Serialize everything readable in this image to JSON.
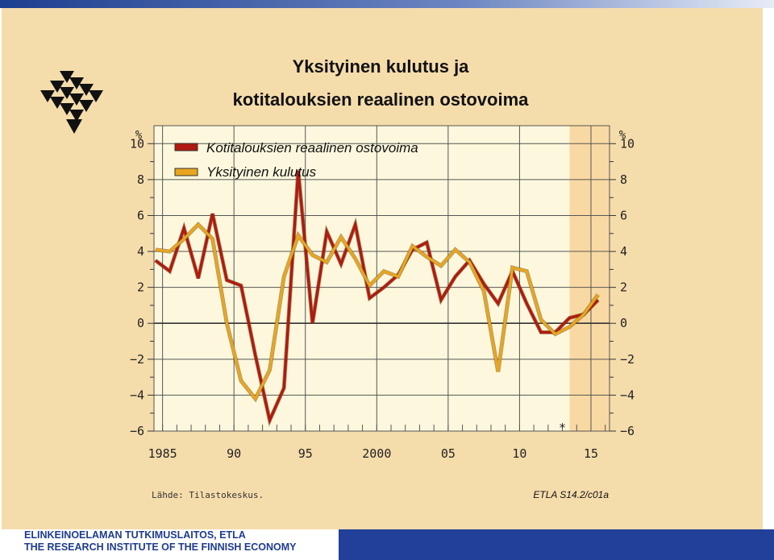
{
  "footer": {
    "line1": "ELINKEINOELAMAN TUTKIMUSLAITOS, ETLA",
    "line2": "THE RESEARCH INSTITUTE OF THE FINNISH ECONOMY"
  },
  "colors": {
    "slide_bg": "#f5dcab",
    "plot_bg": "#fdf8dd",
    "forecast_bg": "#f9d9a3",
    "series1": "#b01a10",
    "series2": "#e8a51f",
    "footer_blue": "#22409a"
  },
  "logo_icon": "etla-triangles-logo",
  "chart_data": {
    "type": "line",
    "title": "Yksityinen kulutus ja kotitalouksien reaalinen ostovoima",
    "title_lines": [
      "Yksityinen kulutus ja",
      "kotitalouksien reaalinen ostovoima"
    ],
    "ylabel": "%",
    "ylabel_right": "%",
    "ylim": [
      -6,
      11
    ],
    "yticks": [
      "10",
      "8",
      "6",
      "4",
      "2",
      "0",
      "−2",
      "−4",
      "−6"
    ],
    "ytick_values": [
      10,
      8,
      6,
      4,
      2,
      0,
      -2,
      -4,
      -6
    ],
    "xlim": [
      1984.4,
      2016.3
    ],
    "xticks": [
      "1985",
      "90",
      "95",
      "2000",
      "05",
      "10",
      "15"
    ],
    "xtick_values": [
      1985,
      1990,
      1995,
      2000,
      2005,
      2010,
      2015
    ],
    "forecast_from": 2013.5,
    "forecast_marker": "*",
    "forecast_marker_x": 2013,
    "grid": true,
    "legend_position": "top-left",
    "x": [
      1984.5,
      1985.5,
      1986.5,
      1987.5,
      1988.5,
      1989.5,
      1990.5,
      1991.5,
      1992.5,
      1993.5,
      1994.5,
      1995.5,
      1996.5,
      1997.5,
      1998.5,
      1999.5,
      2000.5,
      2001.5,
      2002.5,
      2003.5,
      2004.5,
      2005.5,
      2006.5,
      2007.5,
      2008.5,
      2009.5,
      2010.5,
      2011.5,
      2012.5,
      2013.5,
      2014.5,
      2015.5
    ],
    "series": [
      {
        "name": "Kotitalouksien reaalinen ostovoima",
        "color": "#b01a10",
        "values": [
          3.5,
          2.9,
          5.3,
          2.5,
          6.1,
          2.4,
          2.1,
          -1.8,
          -5.4,
          -3.6,
          8.5,
          0.0,
          5.1,
          3.3,
          5.5,
          1.4,
          2.0,
          2.7,
          4.1,
          4.5,
          1.3,
          2.6,
          3.5,
          2.2,
          1.1,
          2.9,
          1.1,
          -0.5,
          -0.5,
          0.3,
          0.5,
          1.3
        ]
      },
      {
        "name": "Yksityinen kulutus",
        "color": "#e8a51f",
        "values": [
          4.1,
          4.0,
          4.7,
          5.5,
          4.7,
          0.0,
          -3.2,
          -4.2,
          -2.6,
          2.6,
          4.9,
          3.8,
          3.4,
          4.8,
          3.6,
          2.1,
          2.9,
          2.6,
          4.3,
          3.7,
          3.2,
          4.1,
          3.4,
          1.8,
          -2.7,
          3.1,
          2.9,
          0.2,
          -0.6,
          -0.2,
          0.5,
          1.6
        ]
      }
    ],
    "source": "Lähde:   Tilastokeskus.",
    "code": "ETLA S14.2/c01a"
  }
}
